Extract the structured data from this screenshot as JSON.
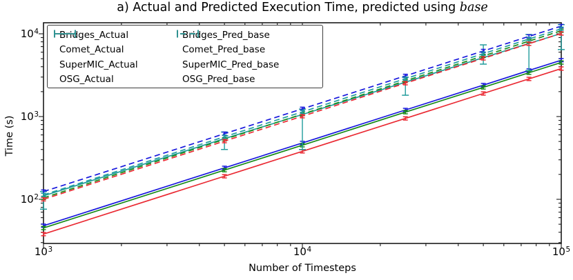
{
  "title": {
    "prefix": "a) Actual and Predicted Execution Time, predicted using ",
    "math": "base"
  },
  "axes": {
    "x": {
      "label": "Number of Timesteps",
      "scale": "log",
      "ticks": [
        {
          "mantissa": "10",
          "sup": "3",
          "value": 1000
        },
        {
          "mantissa": "10",
          "sup": "4",
          "value": 10000
        },
        {
          "mantissa": "10",
          "sup": "5",
          "value": 100000
        }
      ]
    },
    "y": {
      "label": "Time (s)",
      "scale": "log",
      "ticks": [
        {
          "mantissa": "10",
          "sup": "2",
          "value": 100
        },
        {
          "mantissa": "10",
          "sup": "3",
          "value": 1000
        },
        {
          "mantissa": "10",
          "sup": "4",
          "value": 10000
        }
      ]
    }
  },
  "legend": {
    "entries": [
      {
        "label": "Bridges_Actual",
        "color": "#1717dd",
        "dashed": false,
        "column": 0
      },
      {
        "label": "Comet_Actual",
        "color": "#178a17",
        "dashed": false,
        "column": 0
      },
      {
        "label": "SuperMIC_Actual",
        "color": "#ea2a33",
        "dashed": false,
        "column": 0
      },
      {
        "label": "OSG_Actual",
        "color": "#209c9c",
        "dashed": false,
        "column": 0
      },
      {
        "label": "Bridges_Pred_base",
        "color": "#1717dd",
        "dashed": true,
        "column": 1
      },
      {
        "label": "Comet_Pred_base",
        "color": "#178a17",
        "dashed": true,
        "column": 1
      },
      {
        "label": "SuperMIC_Pred_base",
        "color": "#ea2a33",
        "dashed": true,
        "column": 1
      },
      {
        "label": "OSG_Pred_base",
        "color": "#209c9c",
        "dashed": true,
        "column": 1
      }
    ]
  },
  "chart_data": {
    "type": "line",
    "title": "a) Actual and Predicted Execution Time, predicted using base",
    "xlabel": "Number of Timesteps",
    "ylabel": "Time (s)",
    "xscale": "log",
    "yscale": "log",
    "xlim": [
      1000,
      100000
    ],
    "ylim": [
      29,
      13600
    ],
    "grid": false,
    "legend_position": "upper left",
    "x": [
      1000,
      5000,
      10000,
      25000,
      50000,
      75000,
      100000
    ],
    "series": [
      {
        "name": "Bridges_Actual",
        "color": "#1717dd",
        "style": "solid",
        "values": [
          48,
          240,
          480,
          1200,
          2400,
          3600,
          4800
        ]
      },
      {
        "name": "Comet_Actual",
        "color": "#178a17",
        "style": "solid",
        "values": [
          45,
          225,
          450,
          1130,
          2250,
          3380,
          4500
        ]
      },
      {
        "name": "SuperMIC_Actual",
        "color": "#ea2a33",
        "style": "solid",
        "values": [
          38,
          190,
          380,
          950,
          1900,
          2850,
          3800
        ]
      },
      {
        "name": "OSG_Actual",
        "color": "#209c9c",
        "style": "solid",
        "values": [
          110,
          540,
          1060,
          2600,
          5150,
          7650,
          10100
        ],
        "err_low": [
          76,
          400,
          400,
          1810,
          4300,
          3600,
          6450
        ],
        "err_high": [
          124,
          650,
          1230,
          2985,
          7350,
          9800,
          12900
        ]
      },
      {
        "name": "Bridges_Pred_base",
        "color": "#1717dd",
        "style": "dashed",
        "values": [
          124,
          620,
          1240,
          3100,
          6200,
          9300,
          12400
        ]
      },
      {
        "name": "Comet_Pred_base",
        "color": "#178a17",
        "style": "dashed",
        "values": [
          104,
          530,
          1070,
          2700,
          5400,
          8150,
          10900
        ]
      },
      {
        "name": "SuperMIC_Pred_base",
        "color": "#ea2a33",
        "style": "dashed",
        "values": [
          100,
          505,
          1010,
          2530,
          5050,
          7580,
          10100
        ]
      },
      {
        "name": "OSG_Pred_base",
        "color": "#209c9c",
        "style": "dashed",
        "values": [
          113,
          570,
          1140,
          2870,
          5750,
          8650,
          11500
        ]
      }
    ]
  }
}
